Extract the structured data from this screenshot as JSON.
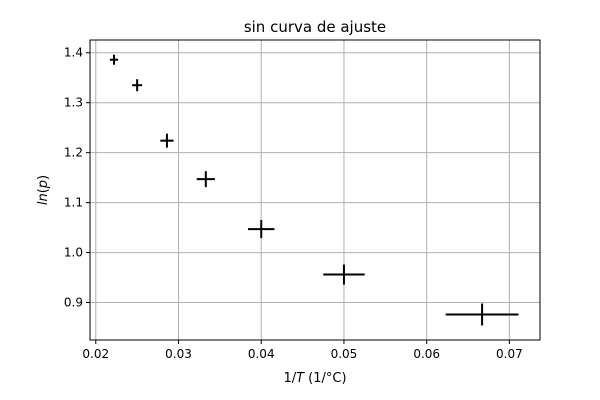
{
  "chart_data": {
    "type": "scatter",
    "title": "sin curva de ajuste",
    "xlabel": {
      "prefix": "1/",
      "var": "T",
      "suffix": " (1/°C)"
    },
    "ylabel": {
      "var": "ln",
      "open": "(",
      "arg": "p",
      "close": ")"
    },
    "xlim": [
      0.0193,
      0.0737
    ],
    "ylim": [
      0.825,
      1.4255
    ],
    "x_ticks": [
      {
        "value": 0.02,
        "label": "0.02"
      },
      {
        "value": 0.03,
        "label": "0.03"
      },
      {
        "value": 0.04,
        "label": "0.04"
      },
      {
        "value": 0.05,
        "label": "0.05"
      },
      {
        "value": 0.06,
        "label": "0.06"
      },
      {
        "value": 0.07,
        "label": "0.07"
      }
    ],
    "y_ticks": [
      {
        "value": 0.9,
        "label": "0.9"
      },
      {
        "value": 1.0,
        "label": "1.0"
      },
      {
        "value": 1.1,
        "label": "1.1"
      },
      {
        "value": 1.2,
        "label": "1.2"
      },
      {
        "value": 1.3,
        "label": "1.3"
      },
      {
        "value": 1.4,
        "label": "1.4"
      }
    ],
    "grid": true,
    "marker_color": "#000000",
    "points": [
      {
        "x": 0.0222,
        "y": 1.386,
        "xerr": 0.0005,
        "yerr": 0.01
      },
      {
        "x": 0.025,
        "y": 1.335,
        "xerr": 0.0006,
        "yerr": 0.012
      },
      {
        "x": 0.0286,
        "y": 1.224,
        "xerr": 0.0008,
        "yerr": 0.014
      },
      {
        "x": 0.0333,
        "y": 1.147,
        "xerr": 0.0011,
        "yerr": 0.016
      },
      {
        "x": 0.04,
        "y": 1.047,
        "xerr": 0.0016,
        "yerr": 0.018
      },
      {
        "x": 0.05,
        "y": 0.956,
        "xerr": 0.0025,
        "yerr": 0.02
      },
      {
        "x": 0.0667,
        "y": 0.876,
        "xerr": 0.0044,
        "yerr": 0.022
      }
    ]
  }
}
